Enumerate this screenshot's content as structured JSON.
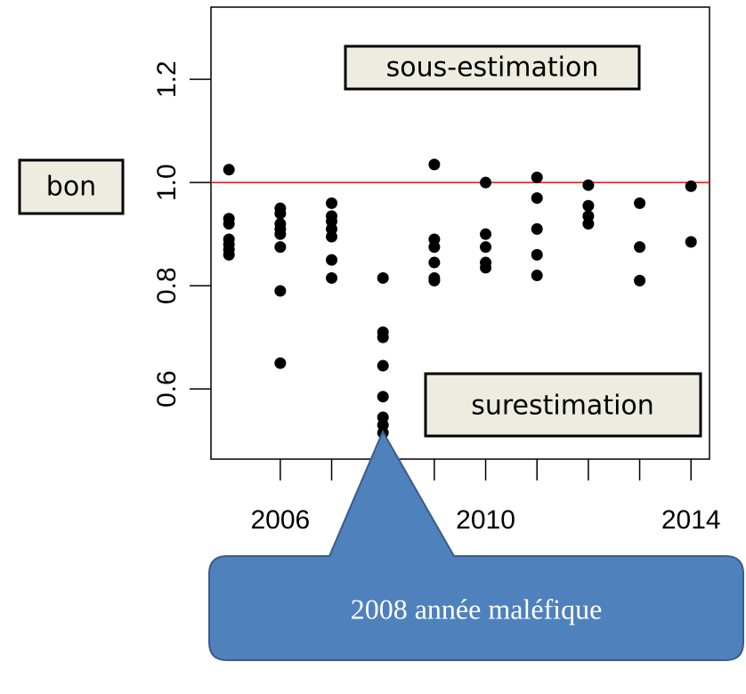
{
  "chart_data": {
    "type": "scatter",
    "x": [
      2005,
      2005,
      2005,
      2005,
      2005,
      2005,
      2005,
      2006,
      2006,
      2006,
      2006,
      2006,
      2006,
      2006,
      2006,
      2007,
      2007,
      2007,
      2007,
      2007,
      2007,
      2007,
      2008,
      2008,
      2008,
      2008,
      2008,
      2008,
      2008,
      2008,
      2009,
      2009,
      2009,
      2009,
      2009,
      2009,
      2010,
      2010,
      2010,
      2010,
      2010,
      2011,
      2011,
      2011,
      2011,
      2011,
      2012,
      2012,
      2012,
      2012,
      2013,
      2013,
      2013,
      2014,
      2014
    ],
    "values": [
      1.025,
      0.93,
      0.92,
      0.89,
      0.88,
      0.87,
      0.86,
      0.95,
      0.94,
      0.92,
      0.91,
      0.9,
      0.875,
      0.79,
      0.65,
      0.96,
      0.935,
      0.925,
      0.91,
      0.895,
      0.85,
      0.815,
      0.815,
      0.71,
      0.7,
      0.645,
      0.585,
      0.545,
      0.53,
      0.515,
      1.035,
      0.89,
      0.875,
      0.845,
      0.815,
      0.81,
      1.0,
      0.9,
      0.875,
      0.845,
      0.835,
      1.01,
      0.97,
      0.91,
      0.86,
      0.82,
      0.995,
      0.955,
      0.935,
      0.92,
      0.96,
      0.875,
      0.81,
      0.993,
      0.885
    ],
    "color": "#000000",
    "xlim": [
      2004.65,
      2014.36
    ],
    "ylim": [
      0.464,
      1.34
    ],
    "xticks": [
      2006,
      {
        "value": 2007,
        "label": null
      },
      {
        "value": 2008,
        "label": null
      },
      {
        "value": 2009,
        "label": null
      },
      2010,
      {
        "value": 2011,
        "label": null
      },
      {
        "value": 2012,
        "label": null
      },
      {
        "value": 2013,
        "label": null
      },
      2014
    ],
    "yticks": [
      0.6,
      0.8,
      {
        "value": 1,
        "label": "1.0"
      },
      1.2
    ],
    "hline": 1,
    "hline_color": "#ff0000",
    "annotations": {
      "top": "sous-estimation",
      "left": "bon",
      "bottom": "surestimation",
      "callout": "2008 année maléfique"
    }
  }
}
